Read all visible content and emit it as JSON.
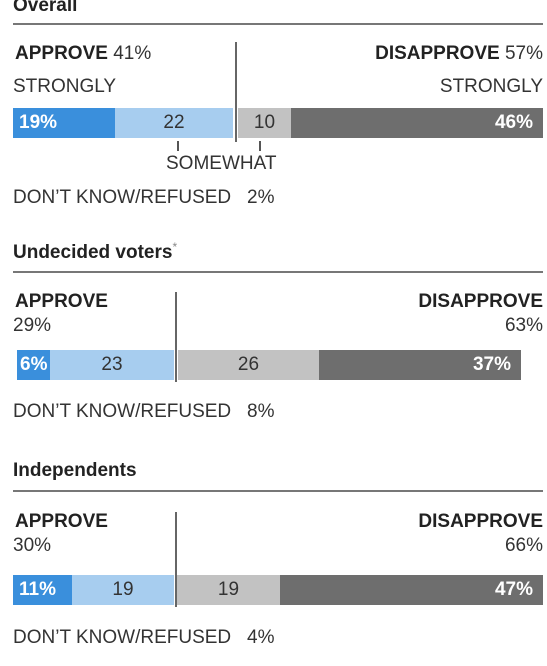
{
  "colors": {
    "strongly_approve": "#3a8fdc",
    "somewhat_approve": "#a7cdef",
    "somewhat_disapprove": "#c2c2c2",
    "strongly_disapprove": "#6e6e6e"
  },
  "labels": {
    "approve": "APPROVE",
    "disapprove": "DISAPPROVE",
    "strongly": "STRONGLY",
    "somewhat": "SOMEWHAT",
    "dk": "DON’T KNOW/REFUSED"
  },
  "chart_data": [
    {
      "type": "bar",
      "orientation": "horizontal-stacked",
      "title": "Overall",
      "approve_total": "41%",
      "disapprove_total": "57%",
      "dk_value": "2%",
      "series": [
        {
          "value": 19,
          "label": "19%"
        },
        {
          "value": 22,
          "label": "22"
        },
        {
          "value": 10,
          "label": "10"
        },
        {
          "value": 46,
          "label": "46%"
        }
      ]
    },
    {
      "type": "bar",
      "orientation": "horizontal-stacked",
      "title": "Undecided voters",
      "footnote_mark": "*",
      "approve_total": "29%",
      "disapprove_total": "63%",
      "dk_value": "8%",
      "series": [
        {
          "value": 6,
          "label": "6%"
        },
        {
          "value": 23,
          "label": "23"
        },
        {
          "value": 26,
          "label": "26"
        },
        {
          "value": 37,
          "label": "37%"
        }
      ]
    },
    {
      "type": "bar",
      "orientation": "horizontal-stacked",
      "title": "Independents",
      "approve_total": "30%",
      "disapprove_total": "66%",
      "dk_value": "4%",
      "series": [
        {
          "value": 11,
          "label": "11%"
        },
        {
          "value": 19,
          "label": "19"
        },
        {
          "value": 19,
          "label": "19"
        },
        {
          "value": 47,
          "label": "47%"
        }
      ]
    }
  ]
}
